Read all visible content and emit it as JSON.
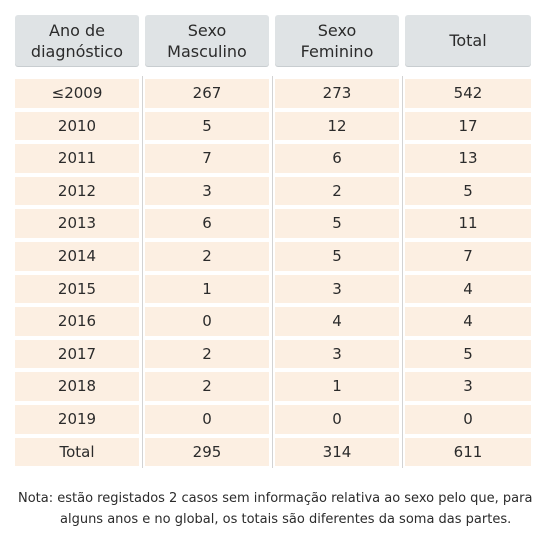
{
  "table": {
    "headers": [
      "Ano de\ndiagnóstico",
      "Sexo\nMasculino",
      "Sexo\nFeminino",
      "Total"
    ],
    "rows": [
      [
        "≤2009",
        "267",
        "273",
        "542"
      ],
      [
        "2010",
        "5",
        "12",
        "17"
      ],
      [
        "2011",
        "7",
        "6",
        "13"
      ],
      [
        "2012",
        "3",
        "2",
        "5"
      ],
      [
        "2013",
        "6",
        "5",
        "11"
      ],
      [
        "2014",
        "2",
        "5",
        "7"
      ],
      [
        "2015",
        "1",
        "3",
        "4"
      ],
      [
        "2016",
        "0",
        "4",
        "4"
      ],
      [
        "2017",
        "2",
        "3",
        "5"
      ],
      [
        "2018",
        "2",
        "1",
        "3"
      ],
      [
        "2019",
        "0",
        "0",
        "0"
      ]
    ],
    "total_row": [
      "Total",
      "295",
      "314",
      "611"
    ]
  },
  "note": {
    "prefix": "Nota:",
    "line1": "estão registados 2 casos sem informação relativa ao sexo pelo que, para",
    "line2": "alguns anos e no global, os totais são diferentes da soma das partes."
  },
  "colors": {
    "header_bg": "#dfe3e5",
    "row_bg": "#fcefe2"
  }
}
